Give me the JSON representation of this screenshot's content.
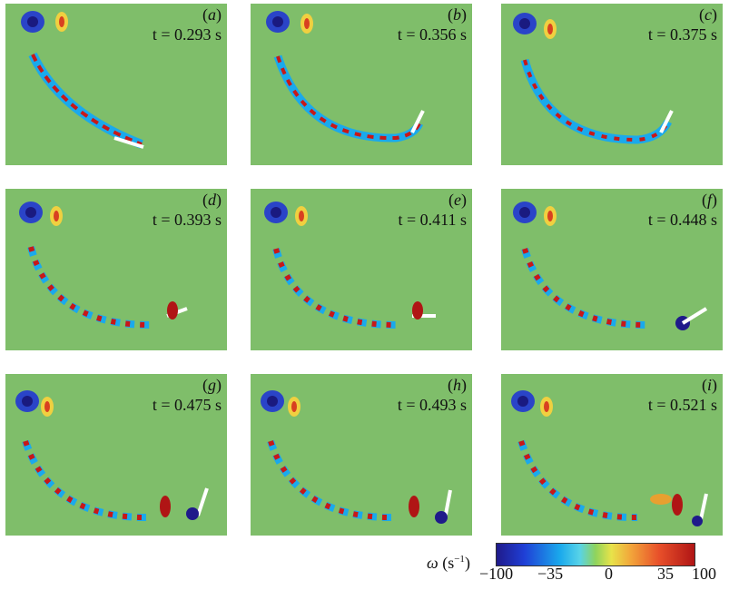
{
  "panels": [
    {
      "label": "a",
      "time": "t = 0.293 s"
    },
    {
      "label": "b",
      "time": "t = 0.356 s"
    },
    {
      "label": "c",
      "time": "t = 0.375 s"
    },
    {
      "label": "d",
      "time": "t = 0.393 s"
    },
    {
      "label": "e",
      "time": "t = 0.411 s"
    },
    {
      "label": "f",
      "time": "t = 0.448 s"
    },
    {
      "label": "g",
      "time": "t = 0.475 s"
    },
    {
      "label": "h",
      "time": "t = 0.493 s"
    },
    {
      "label": "i",
      "time": "t = 0.521 s"
    }
  ],
  "colorbar": {
    "symbol": "ω",
    "unit": "(s",
    "unit_exp": "−1",
    "unit_close": ")",
    "ticks": [
      "−100",
      "−35",
      "0",
      "35",
      "100"
    ],
    "tick_values": [
      -100,
      -35,
      0,
      35,
      100
    ],
    "range": [
      -100,
      100
    ]
  },
  "colors": {
    "background": "#7fbe6a",
    "strong_negative": "#1f1a8a",
    "negative": "#1aa9ec",
    "positive": "#e8e34a",
    "strong_positive": "#b01515"
  }
}
